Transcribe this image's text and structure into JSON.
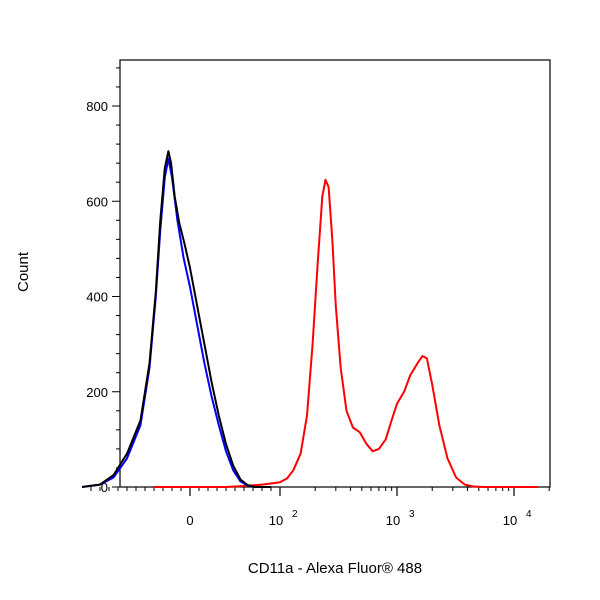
{
  "chart_data": {
    "type": "line",
    "xlabel": "CD11a - Alexa Fluor® 488",
    "ylabel": "Count",
    "x_scale": "biexponential",
    "x_ticks": [
      {
        "value": 0,
        "base": "0",
        "exp": ""
      },
      {
        "value": 100,
        "base": "10",
        "exp": "2"
      },
      {
        "value": 1000,
        "base": "10",
        "exp": "3"
      },
      {
        "value": 10000,
        "base": "10",
        "exp": "4"
      }
    ],
    "y_ticks": [
      0,
      200,
      400,
      600,
      800
    ],
    "ylim": [
      0,
      900
    ],
    "grid": false,
    "series": [
      {
        "color": "#ff0000",
        "points": [
          [
            -40,
            0
          ],
          [
            -20,
            0
          ],
          [
            0,
            0
          ],
          [
            20,
            0
          ],
          [
            40,
            0
          ],
          [
            60,
            2
          ],
          [
            80,
            5
          ],
          [
            100,
            10
          ],
          [
            115,
            18
          ],
          [
            130,
            35
          ],
          [
            150,
            70
          ],
          [
            170,
            150
          ],
          [
            190,
            300
          ],
          [
            210,
            470
          ],
          [
            230,
            610
          ],
          [
            245,
            645
          ],
          [
            260,
            630
          ],
          [
            280,
            520
          ],
          [
            300,
            380
          ],
          [
            330,
            250
          ],
          [
            370,
            160
          ],
          [
            420,
            125
          ],
          [
            480,
            115
          ],
          [
            550,
            90
          ],
          [
            620,
            75
          ],
          [
            700,
            80
          ],
          [
            800,
            100
          ],
          [
            900,
            140
          ],
          [
            1000,
            175
          ],
          [
            1150,
            200
          ],
          [
            1300,
            235
          ],
          [
            1500,
            260
          ],
          [
            1650,
            275
          ],
          [
            1800,
            270
          ],
          [
            2000,
            215
          ],
          [
            2300,
            130
          ],
          [
            2700,
            60
          ],
          [
            3200,
            20
          ],
          [
            3800,
            5
          ],
          [
            4500,
            1
          ],
          [
            5500,
            0
          ],
          [
            8000,
            0
          ],
          [
            12000,
            0
          ],
          [
            16000,
            0
          ]
        ]
      },
      {
        "color": "#0000ff",
        "points": [
          [
            -120,
            0
          ],
          [
            -100,
            5
          ],
          [
            -85,
            20
          ],
          [
            -70,
            60
          ],
          [
            -55,
            130
          ],
          [
            -45,
            250
          ],
          [
            -38,
            400
          ],
          [
            -33,
            540
          ],
          [
            -28,
            650
          ],
          [
            -24,
            690
          ],
          [
            -20,
            650
          ],
          [
            -14,
            560
          ],
          [
            -7,
            480
          ],
          [
            0,
            420
          ],
          [
            8,
            340
          ],
          [
            16,
            260
          ],
          [
            24,
            190
          ],
          [
            32,
            130
          ],
          [
            40,
            75
          ],
          [
            48,
            35
          ],
          [
            56,
            12
          ],
          [
            64,
            3
          ],
          [
            72,
            0
          ],
          [
            90,
            0
          ]
        ]
      },
      {
        "color": "#000000",
        "points": [
          [
            -120,
            0
          ],
          [
            -100,
            5
          ],
          [
            -85,
            25
          ],
          [
            -70,
            70
          ],
          [
            -55,
            140
          ],
          [
            -45,
            260
          ],
          [
            -38,
            410
          ],
          [
            -33,
            560
          ],
          [
            -28,
            670
          ],
          [
            -24,
            705
          ],
          [
            -21,
            680
          ],
          [
            -17,
            610
          ],
          [
            -12,
            555
          ],
          [
            -6,
            510
          ],
          [
            0,
            460
          ],
          [
            8,
            380
          ],
          [
            16,
            300
          ],
          [
            24,
            220
          ],
          [
            32,
            150
          ],
          [
            40,
            90
          ],
          [
            48,
            45
          ],
          [
            56,
            16
          ],
          [
            64,
            4
          ],
          [
            72,
            0
          ],
          [
            90,
            0
          ]
        ]
      }
    ]
  }
}
